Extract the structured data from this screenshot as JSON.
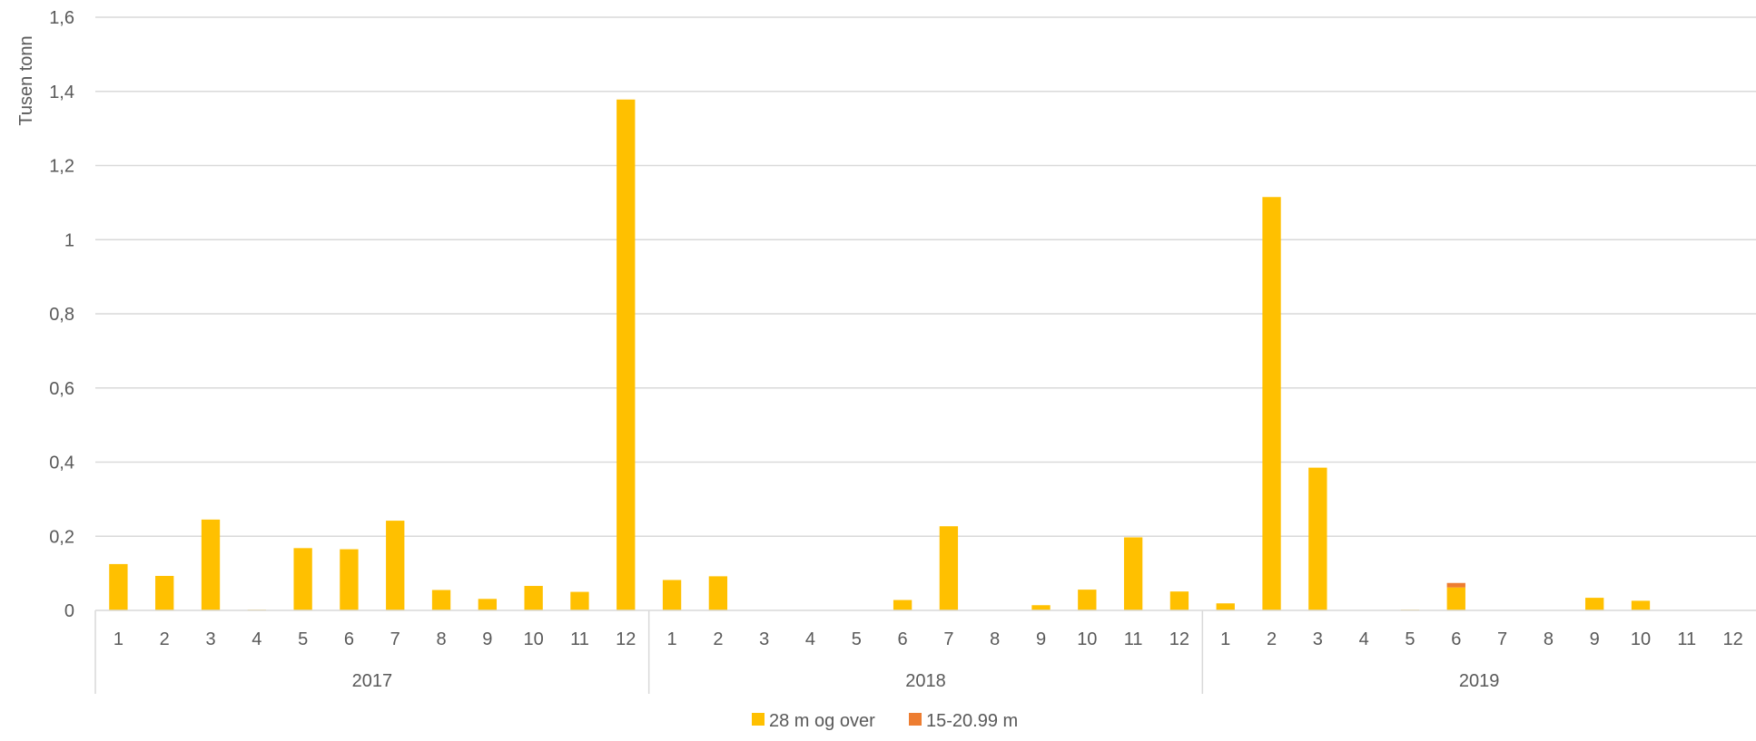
{
  "chart_data": {
    "type": "bar",
    "stacked": true,
    "ylabel": "Tusen tonn",
    "xlabel": "",
    "ylim": [
      0,
      1.6
    ],
    "y_ticks": [
      "0",
      "0,2",
      "0,4",
      "0,6",
      "0,8",
      "1",
      "1,2",
      "1,4",
      "1,6"
    ],
    "grid": true,
    "legend_position": "bottom",
    "groups": [
      {
        "label": "2017",
        "categories": [
          "1",
          "2",
          "3",
          "4",
          "5",
          "6",
          "7",
          "8",
          "9",
          "10",
          "11",
          "12"
        ]
      },
      {
        "label": "2018",
        "categories": [
          "1",
          "2",
          "3",
          "4",
          "5",
          "6",
          "7",
          "8",
          "9",
          "10",
          "11",
          "12"
        ]
      },
      {
        "label": "2019",
        "categories": [
          "1",
          "2",
          "3",
          "4",
          "5",
          "6",
          "7",
          "8",
          "9",
          "10",
          "11",
          "12"
        ]
      }
    ],
    "series": [
      {
        "name": "28 m og over",
        "color": "#FFC000",
        "values": [
          0.125,
          0.093,
          0.245,
          0.002,
          0.168,
          0.165,
          0.242,
          0.055,
          0.031,
          0.066,
          0.05,
          1.378,
          0.082,
          0.092,
          0,
          0,
          0,
          0.028,
          0.227,
          0,
          0.014,
          0.056,
          0.197,
          0.051,
          0.019,
          1.115,
          0.385,
          0,
          0.002,
          0.062,
          0,
          0,
          0.034,
          0.026,
          0,
          0
        ]
      },
      {
        "name": "15-20.99 m",
        "color": "#ED7D31",
        "values": [
          0,
          0,
          0,
          0,
          0,
          0,
          0,
          0,
          0,
          0,
          0,
          0,
          0,
          0,
          0,
          0,
          0,
          0,
          0,
          0,
          0,
          0,
          0,
          0,
          0,
          0,
          0,
          0,
          0,
          0.012,
          0,
          0,
          0,
          0,
          0,
          0
        ]
      }
    ]
  }
}
